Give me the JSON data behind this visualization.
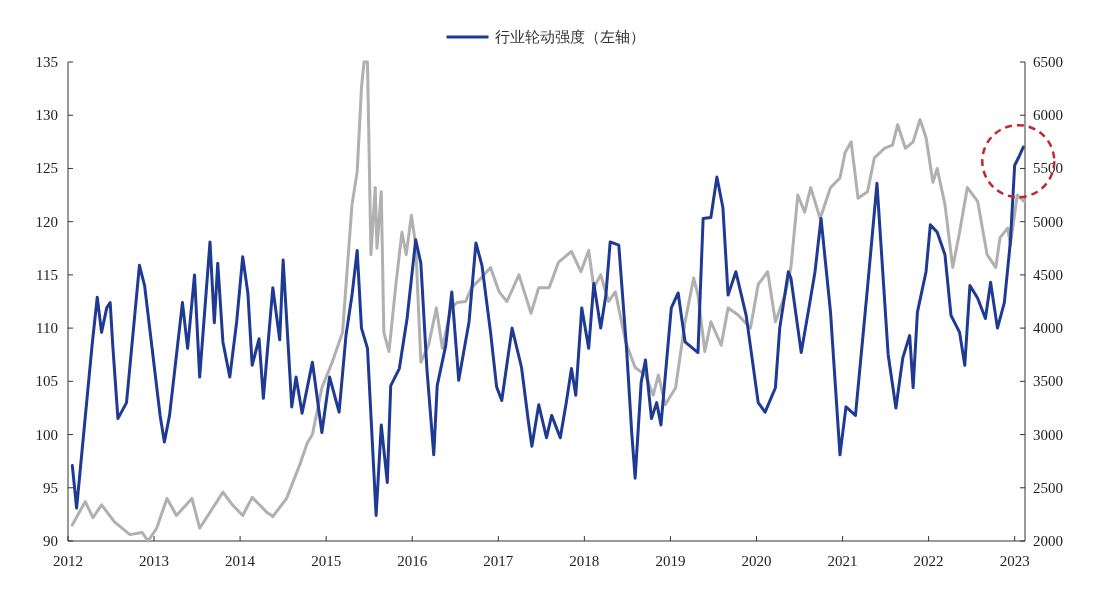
{
  "chart_data": {
    "type": "line",
    "xlim": [
      2012,
      2023.12
    ],
    "xticks": [
      2012,
      2013,
      2014,
      2015,
      2016,
      2017,
      2018,
      2019,
      2020,
      2021,
      2022,
      2023
    ],
    "ylim": [
      90,
      135
    ],
    "yticks": [
      90,
      95,
      100,
      105,
      110,
      115,
      120,
      125,
      130,
      135
    ],
    "y2lim": [
      2000,
      6500
    ],
    "y2ticks": [
      2000,
      2500,
      3000,
      3500,
      4000,
      4500,
      5000,
      5500,
      6000,
      6500
    ],
    "legend": "top",
    "marker": "none",
    "line_style": "solid",
    "series": [
      {
        "name": "行业轮动强度（左轴）",
        "color": "#1f3a93",
        "x": [
          2012.05,
          2012.1,
          2012.28,
          2012.34,
          2012.39,
          2012.45,
          2012.49,
          2012.52,
          2012.58,
          2012.68,
          2012.83,
          2012.89,
          2013.07,
          2013.12,
          2013.18,
          2013.33,
          2013.39,
          2013.47,
          2013.53,
          2013.65,
          2013.7,
          2013.74,
          2013.8,
          2013.88,
          2013.96,
          2014.03,
          2014.09,
          2014.14,
          2014.22,
          2014.27,
          2014.38,
          2014.46,
          2014.5,
          2014.6,
          2014.65,
          2014.72,
          2014.84,
          2014.95,
          2015.04,
          2015.15,
          2015.23,
          2015.3,
          2015.36,
          2015.41,
          2015.48,
          2015.58,
          2015.64,
          2015.71,
          2015.75,
          2015.85,
          2015.94,
          2016.04,
          2016.1,
          2016.17,
          2016.25,
          2016.29,
          2016.39,
          2016.46,
          2016.54,
          2016.66,
          2016.74,
          2016.81,
          2016.91,
          2016.98,
          2017.04,
          2017.16,
          2017.27,
          2017.35,
          2017.39,
          2017.47,
          2017.56,
          2017.62,
          2017.72,
          2017.79,
          2017.85,
          2017.9,
          2017.97,
          2018.05,
          2018.11,
          2018.19,
          2018.25,
          2018.3,
          2018.4,
          2018.49,
          2018.55,
          2018.59,
          2018.66,
          2018.71,
          2018.78,
          2018.84,
          2018.89,
          2019.01,
          2019.09,
          2019.17,
          2019.32,
          2019.38,
          2019.47,
          2019.54,
          2019.61,
          2019.67,
          2019.76,
          2019.88,
          2020.02,
          2020.1,
          2020.22,
          2020.27,
          2020.37,
          2020.4,
          2020.52,
          2020.62,
          2020.68,
          2020.75,
          2020.86,
          2020.97,
          2021.04,
          2021.15,
          2021.29,
          2021.4,
          2021.53,
          2021.62,
          2021.7,
          2021.78,
          2021.82,
          2021.87,
          2021.97,
          2022.02,
          2022.1,
          2022.19,
          2022.26,
          2022.36,
          2022.42,
          2022.48,
          2022.57,
          2022.66,
          2022.72,
          2022.8,
          2022.88,
          2022.95,
          2023.0,
          2023.05,
          2023.1
        ],
        "values": [
          97.1,
          93.1,
          108.4,
          112.9,
          109.6,
          111.9,
          112.4,
          108.4,
          101.5,
          103,
          115.9,
          114,
          101.8,
          99.3,
          101.8,
          112.4,
          108.1,
          115,
          105.4,
          118.1,
          110.5,
          116.1,
          108.7,
          105.4,
          110.6,
          116.7,
          113.3,
          106.5,
          109,
          103.4,
          113.8,
          108.9,
          116.4,
          102.6,
          105.4,
          102,
          106.8,
          100.2,
          105.4,
          102.1,
          109.3,
          113.1,
          117.3,
          110,
          108.1,
          92.4,
          100.9,
          95.5,
          104.6,
          106.2,
          110.9,
          118.3,
          116.1,
          106.2,
          98.1,
          104.6,
          108.4,
          113.4,
          105.1,
          110.6,
          118,
          115.9,
          109.6,
          104.5,
          103.2,
          110,
          106.3,
          101.2,
          98.9,
          102.8,
          99.7,
          101.8,
          99.7,
          103,
          106.2,
          103.7,
          111.9,
          108.1,
          114.2,
          110,
          113.1,
          118.1,
          117.8,
          108.1,
          100.2,
          95.9,
          104.9,
          107,
          101.5,
          103,
          100.9,
          111.9,
          113.3,
          108.7,
          107.7,
          120.3,
          120.4,
          124.2,
          121.3,
          113.1,
          115.3,
          111.2,
          103,
          102.1,
          104.4,
          110,
          115.3,
          114.7,
          107.7,
          112.4,
          115.3,
          120.3,
          111.5,
          98.1,
          102.6,
          101.8,
          113.8,
          123.6,
          107.5,
          102.5,
          107.2,
          109.3,
          104.4,
          111.5,
          115.3,
          119.7,
          119,
          116.9,
          111.2,
          109.6,
          106.5,
          114,
          112.8,
          110.9,
          114.3,
          110,
          112.4,
          118.1,
          125.3,
          126.1,
          127
        ]
      },
      {
        "color": "#b0b0b0",
        "axis": "y2",
        "x": [
          2012.05,
          2012.2,
          2012.29,
          2012.39,
          2012.54,
          2012.72,
          2012.86,
          2012.93,
          2013.03,
          2013.15,
          2013.26,
          2013.44,
          2013.53,
          2013.73,
          2013.8,
          2013.91,
          2014.03,
          2014.14,
          2014.31,
          2014.38,
          2014.54,
          2014.69,
          2014.78,
          2014.84,
          2014.95,
          2015.07,
          2015.19,
          2015.3,
          2015.36,
          2015.41,
          2015.44,
          2015.48,
          2015.52,
          2015.57,
          2015.59,
          2015.64,
          2015.67,
          2015.73,
          2015.81,
          2015.88,
          2015.93,
          2015.99,
          2016.04,
          2016.1,
          2016.19,
          2016.28,
          2016.35,
          2016.45,
          2016.52,
          2016.62,
          2016.69,
          2016.8,
          2016.91,
          2017.01,
          2017.1,
          2017.24,
          2017.38,
          2017.47,
          2017.59,
          2017.7,
          2017.85,
          2017.96,
          2018.05,
          2018.11,
          2018.19,
          2018.28,
          2018.36,
          2018.48,
          2018.59,
          2018.71,
          2018.8,
          2018.86,
          2018.94,
          2019.06,
          2019.17,
          2019.27,
          2019.32,
          2019.4,
          2019.47,
          2019.59,
          2019.67,
          2019.79,
          2019.93,
          2020.02,
          2020.13,
          2020.22,
          2020.33,
          2020.4,
          2020.48,
          2020.56,
          2020.63,
          2020.74,
          2020.86,
          2020.97,
          2021.03,
          2021.1,
          2021.18,
          2021.29,
          2021.37,
          2021.49,
          2021.58,
          2021.64,
          2021.73,
          2021.82,
          2021.9,
          2021.97,
          2022.05,
          2022.1,
          2022.19,
          2022.28,
          2022.36,
          2022.45,
          2022.57,
          2022.68,
          2022.78,
          2022.83,
          2022.92,
          2022.95,
          2023.03,
          2023.11
        ],
        "values": [
          2150,
          2370,
          2220,
          2340,
          2180,
          2060,
          2080,
          2000,
          2120,
          2400,
          2240,
          2400,
          2120,
          2370,
          2460,
          2340,
          2240,
          2410,
          2270,
          2230,
          2400,
          2710,
          2920,
          3000,
          3440,
          3680,
          3960,
          5160,
          5470,
          6260,
          6500,
          6500,
          4690,
          5320,
          4750,
          5280,
          3960,
          3780,
          4410,
          4900,
          4690,
          5060,
          4780,
          3680,
          3840,
          4190,
          3810,
          4190,
          4240,
          4250,
          4380,
          4470,
          4570,
          4340,
          4250,
          4500,
          4140,
          4380,
          4380,
          4620,
          4720,
          4530,
          4730,
          4380,
          4500,
          4250,
          4340,
          3870,
          3630,
          3560,
          3370,
          3560,
          3280,
          3440,
          4060,
          4470,
          4310,
          3780,
          4060,
          3840,
          4190,
          4120,
          4000,
          4410,
          4530,
          4060,
          4310,
          4570,
          5250,
          5090,
          5320,
          5030,
          5320,
          5410,
          5650,
          5750,
          5220,
          5280,
          5600,
          5690,
          5720,
          5910,
          5690,
          5750,
          5960,
          5790,
          5370,
          5500,
          5160,
          4570,
          4900,
          5320,
          5190,
          4690,
          4570,
          4850,
          4940,
          4780,
          5250,
          5190
        ]
      }
    ]
  }
}
